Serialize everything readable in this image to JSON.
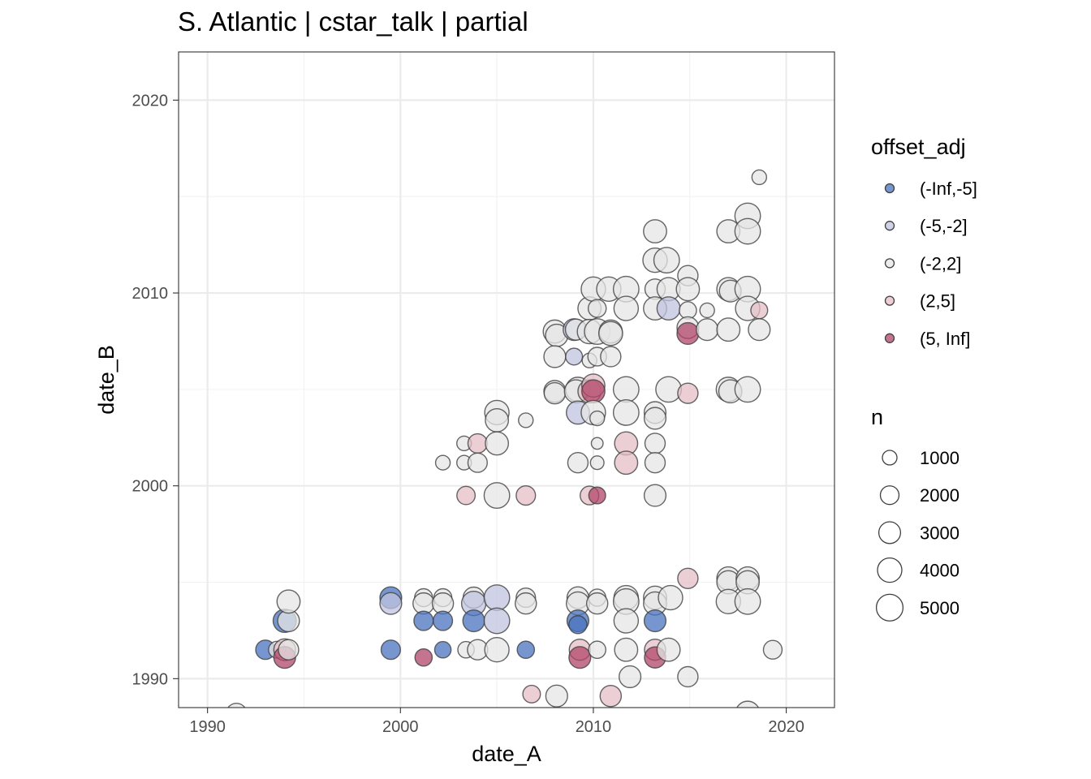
{
  "chart_data": {
    "type": "scatter",
    "title": "S. Atlantic | cstar_talk | partial",
    "xlabel": "date_A",
    "ylabel": "date_B",
    "xlim": [
      1988.5,
      2022.5
    ],
    "ylim": [
      1988.5,
      2022.5
    ],
    "x_ticks": [
      1990,
      2000,
      2010,
      2020
    ],
    "y_ticks": [
      1990,
      2000,
      2010,
      2020
    ],
    "x_tick_labels": [
      "1990",
      "2000",
      "2010",
      "2020"
    ],
    "y_tick_labels": [
      "1990",
      "2000",
      "2010",
      "2020"
    ],
    "grid": true,
    "legend_position": "right",
    "color_legend": {
      "title": "offset_adj",
      "entries": [
        {
          "label": "(-Inf,-5]",
          "color": "#4a73bf"
        },
        {
          "label": "(-5,-2]",
          "color": "#c0c3df"
        },
        {
          "label": "(-2,2]",
          "color": "#e6e6e6"
        },
        {
          "label": "(2,5]",
          "color": "#e4bfc6"
        },
        {
          "label": "(5, Inf]",
          "color": "#b24569"
        }
      ]
    },
    "size_legend": {
      "title": "n",
      "entries": [
        {
          "label": "1000",
          "value": 1000
        },
        {
          "label": "2000",
          "value": 2000
        },
        {
          "label": "3000",
          "value": 3000
        },
        {
          "label": "4000",
          "value": 4000
        },
        {
          "label": "5000",
          "value": 5000
        }
      ]
    },
    "points": [
      [
        1991.5,
        1988.2,
        2500,
        2
      ],
      [
        2018.0,
        1988.2,
        4000,
        2
      ],
      [
        1993.0,
        1991.5,
        2200,
        0
      ],
      [
        1993.6,
        1991.5,
        1500,
        2
      ],
      [
        1994.0,
        1991.5,
        3000,
        3
      ],
      [
        1994.0,
        1991.1,
        3000,
        4
      ],
      [
        1994.2,
        1991.5,
        2500,
        2
      ],
      [
        1994.0,
        1993.0,
        3500,
        0
      ],
      [
        1994.2,
        1993.0,
        3000,
        2
      ],
      [
        1994.2,
        1994.0,
        3500,
        2
      ],
      [
        1999.5,
        1994.2,
        3000,
        0
      ],
      [
        1999.5,
        1993.9,
        3000,
        1
      ],
      [
        1999.5,
        1991.5,
        2200,
        0
      ],
      [
        2001.2,
        1994.2,
        1800,
        2
      ],
      [
        2001.2,
        1993.9,
        2800,
        2
      ],
      [
        2001.2,
        1993.0,
        2200,
        0
      ],
      [
        2001.2,
        1991.1,
        1600,
        4
      ],
      [
        2002.2,
        1994.2,
        1800,
        2
      ],
      [
        2002.2,
        1993.9,
        2800,
        2
      ],
      [
        2002.2,
        1993.0,
        2200,
        0
      ],
      [
        2002.2,
        1991.5,
        1400,
        0
      ],
      [
        2002.2,
        2001.2,
        1000,
        2
      ],
      [
        2003.3,
        2002.2,
        1000,
        2
      ],
      [
        2003.3,
        2001.2,
        1000,
        2
      ],
      [
        2003.4,
        1999.5,
        1900,
        3
      ],
      [
        2003.4,
        1991.5,
        1400,
        2
      ],
      [
        2003.8,
        1994.2,
        2800,
        2
      ],
      [
        2003.8,
        1993.9,
        4000,
        1
      ],
      [
        2003.8,
        1993.0,
        3000,
        0
      ],
      [
        2004.0,
        2002.2,
        2200,
        3
      ],
      [
        2004.0,
        2001.2,
        2200,
        2
      ],
      [
        2004.0,
        1991.5,
        2500,
        2
      ],
      [
        2005.0,
        2003.8,
        4000,
        2
      ],
      [
        2005.0,
        2003.4,
        3500,
        2
      ],
      [
        2005.0,
        2002.2,
        3500,
        2
      ],
      [
        2005.0,
        1999.5,
        4500,
        2
      ],
      [
        2005.0,
        1994.2,
        4500,
        1
      ],
      [
        2005.0,
        1993.0,
        4500,
        1
      ],
      [
        2005.0,
        1991.5,
        4000,
        2
      ],
      [
        2006.5,
        2003.4,
        1000,
        2
      ],
      [
        2006.5,
        1999.5,
        2200,
        3
      ],
      [
        2006.5,
        1994.2,
        2200,
        2
      ],
      [
        2006.5,
        1993.9,
        2800,
        2
      ],
      [
        2006.5,
        1991.5,
        1600,
        0
      ],
      [
        2006.8,
        1989.2,
        1700,
        3
      ],
      [
        2008.0,
        2008.0,
        3500,
        2
      ],
      [
        2008.1,
        2007.8,
        3200,
        2
      ],
      [
        2008.0,
        2006.7,
        3000,
        2
      ],
      [
        2008.0,
        2004.9,
        3000,
        2
      ],
      [
        2008.0,
        2004.8,
        2800,
        2
      ],
      [
        2008.1,
        1989.1,
        3000,
        2
      ],
      [
        2009.0,
        2008.1,
        3000,
        1
      ],
      [
        2009.1,
        2008.1,
        2800,
        2
      ],
      [
        2009.0,
        2006.7,
        1500,
        1
      ],
      [
        2009.2,
        2005.0,
        4000,
        2
      ],
      [
        2009.1,
        2004.9,
        3500,
        2
      ],
      [
        2009.2,
        2003.8,
        3500,
        1
      ],
      [
        2009.2,
        2001.2,
        2500,
        2
      ],
      [
        2009.2,
        1994.2,
        3000,
        2
      ],
      [
        2009.2,
        1993.9,
        3500,
        2
      ],
      [
        2009.2,
        1993.0,
        3000,
        0
      ],
      [
        2009.2,
        1992.8,
        1800,
        0
      ],
      [
        2009.3,
        1991.5,
        2800,
        3
      ],
      [
        2009.3,
        1991.1,
        3000,
        4
      ],
      [
        2009.8,
        2009.2,
        3500,
        2
      ],
      [
        2009.8,
        2008.0,
        4000,
        2
      ],
      [
        2009.8,
        2006.5,
        1000,
        2
      ],
      [
        2009.8,
        2004.9,
        3500,
        3
      ],
      [
        2009.8,
        1999.5,
        2000,
        3
      ],
      [
        2010.0,
        2010.2,
        4000,
        2
      ],
      [
        2010.0,
        2005.2,
        3500,
        3
      ],
      [
        2010.0,
        2004.9,
        3500,
        4
      ],
      [
        2010.0,
        2003.8,
        4000,
        2
      ],
      [
        2010.2,
        2009.2,
        1800,
        2
      ],
      [
        2010.2,
        2008.0,
        4500,
        2
      ],
      [
        2010.2,
        2006.7,
        2000,
        2
      ],
      [
        2010.2,
        2003.5,
        1000,
        2
      ],
      [
        2010.2,
        2002.2,
        500,
        2
      ],
      [
        2010.2,
        2001.2,
        800,
        2
      ],
      [
        2010.2,
        1999.5,
        1500,
        4
      ],
      [
        2010.2,
        1994.2,
        1600,
        2
      ],
      [
        2010.2,
        1993.9,
        2800,
        2
      ],
      [
        2010.2,
        1991.5,
        1600,
        2
      ],
      [
        2010.8,
        2010.2,
        4000,
        2
      ],
      [
        2010.9,
        2008.0,
        3500,
        2
      ],
      [
        2010.9,
        2007.9,
        3800,
        2
      ],
      [
        2010.9,
        2006.7,
        2500,
        2
      ],
      [
        2010.9,
        1989.1,
        2800,
        3
      ],
      [
        2011.7,
        2010.2,
        4500,
        2
      ],
      [
        2011.7,
        2009.2,
        4000,
        2
      ],
      [
        2011.7,
        2005.0,
        4500,
        2
      ],
      [
        2011.7,
        2003.8,
        4500,
        2
      ],
      [
        2011.7,
        2002.2,
        3500,
        3
      ],
      [
        2011.7,
        2001.2,
        3500,
        3
      ],
      [
        2011.7,
        1994.2,
        4000,
        2
      ],
      [
        2011.7,
        1994.0,
        4500,
        2
      ],
      [
        2011.7,
        1993.0,
        4000,
        2
      ],
      [
        2011.7,
        1991.5,
        3500,
        2
      ],
      [
        2011.9,
        1990.1,
        3000,
        2
      ],
      [
        2013.2,
        2013.2,
        3500,
        2
      ],
      [
        2013.2,
        2011.7,
        4000,
        2
      ],
      [
        2013.2,
        2010.2,
        2500,
        2
      ],
      [
        2013.2,
        2009.2,
        3500,
        2
      ],
      [
        2013.2,
        2003.8,
        3000,
        2
      ],
      [
        2013.2,
        2003.5,
        3000,
        2
      ],
      [
        2013.2,
        2002.2,
        2500,
        2
      ],
      [
        2013.2,
        2001.2,
        2500,
        2
      ],
      [
        2013.2,
        1999.5,
        3000,
        2
      ],
      [
        2013.2,
        1994.2,
        3500,
        2
      ],
      [
        2013.2,
        1993.9,
        3500,
        2
      ],
      [
        2013.2,
        1993.0,
        3000,
        0
      ],
      [
        2013.2,
        1991.5,
        2800,
        3
      ],
      [
        2013.2,
        1991.1,
        2800,
        4
      ],
      [
        2013.8,
        2011.7,
        4500,
        2
      ],
      [
        2013.9,
        2010.2,
        3500,
        2
      ],
      [
        2013.9,
        2009.2,
        3500,
        1
      ],
      [
        2013.9,
        2005.0,
        4500,
        2
      ],
      [
        2014.0,
        1994.2,
        4000,
        2
      ],
      [
        2013.9,
        1991.5,
        3500,
        2
      ],
      [
        2014.9,
        2010.9,
        2500,
        2
      ],
      [
        2014.9,
        2010.2,
        3500,
        2
      ],
      [
        2014.9,
        2009.1,
        1600,
        2
      ],
      [
        2014.9,
        2008.2,
        3000,
        2
      ],
      [
        2014.9,
        2007.9,
        3000,
        4
      ],
      [
        2014.9,
        2004.8,
        2500,
        3
      ],
      [
        2014.9,
        1995.2,
        2500,
        3
      ],
      [
        2014.9,
        1990.1,
        2500,
        2
      ],
      [
        2015.9,
        2009.1,
        1000,
        2
      ],
      [
        2015.9,
        2008.1,
        3000,
        2
      ],
      [
        2017.0,
        2013.2,
        3500,
        2
      ],
      [
        2017.0,
        2010.2,
        3500,
        2
      ],
      [
        2017.1,
        2010.1,
        3000,
        2
      ],
      [
        2017.0,
        2008.1,
        3500,
        2
      ],
      [
        2017.0,
        2005.0,
        4000,
        2
      ],
      [
        2017.1,
        2004.9,
        3500,
        2
      ],
      [
        2017.0,
        1995.2,
        3500,
        2
      ],
      [
        2017.0,
        1995.0,
        3500,
        2
      ],
      [
        2017.0,
        1994.0,
        4000,
        2
      ],
      [
        2018.0,
        2014.0,
        4500,
        2
      ],
      [
        2018.0,
        2013.2,
        4500,
        2
      ],
      [
        2018.0,
        2010.2,
        4500,
        2
      ],
      [
        2018.0,
        2009.2,
        4000,
        2
      ],
      [
        2018.0,
        2005.0,
        4500,
        2
      ],
      [
        2018.0,
        1995.2,
        3500,
        2
      ],
      [
        2018.0,
        1995.0,
        3500,
        2
      ],
      [
        2018.0,
        1994.0,
        4500,
        2
      ],
      [
        2018.6,
        2016.0,
        1000,
        2
      ],
      [
        2018.6,
        2009.1,
        1500,
        3
      ],
      [
        2018.6,
        2008.1,
        3000,
        2
      ],
      [
        2019.3,
        1991.5,
        2000,
        2
      ]
    ]
  }
}
